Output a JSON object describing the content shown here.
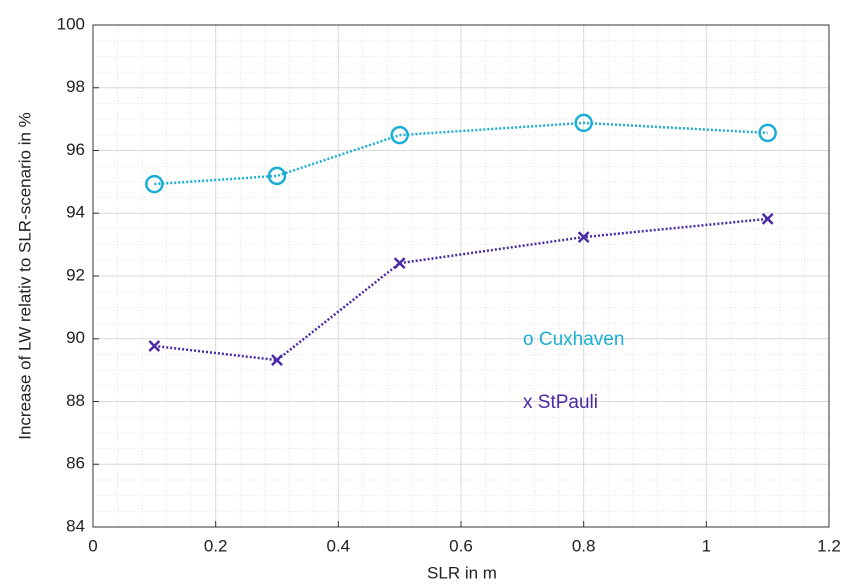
{
  "chart_data": {
    "type": "line",
    "x_label": "SLR in m",
    "y_label": "Increase of LW relativ to SLR-scenario in %",
    "x": [
      0.1,
      0.3,
      0.5,
      0.8,
      1.1
    ],
    "series": [
      {
        "color": "#1aaed6",
        "marker": "o",
        "values": [
          94.93,
          95.19,
          96.49,
          96.88,
          96.56
        ]
      },
      {
        "color": "#4a2aa6",
        "marker": "x",
        "values": [
          89.77,
          89.32,
          92.41,
          93.24,
          93.82
        ]
      }
    ],
    "annotations": [
      {
        "text": "o Cuxhaven",
        "color": "#1aaed6"
      },
      {
        "text": "x StPauli",
        "color": "#4a2aa6"
      }
    ],
    "xlim": [
      0,
      1.2
    ],
    "xticks": [
      0,
      0.2,
      0.4,
      0.6,
      0.8,
      1,
      1.2
    ],
    "ylim": [
      84,
      100
    ],
    "yticks": [
      84,
      86,
      88,
      90,
      92,
      94,
      96,
      98,
      100
    ],
    "grid": true,
    "minor_grid": true
  }
}
